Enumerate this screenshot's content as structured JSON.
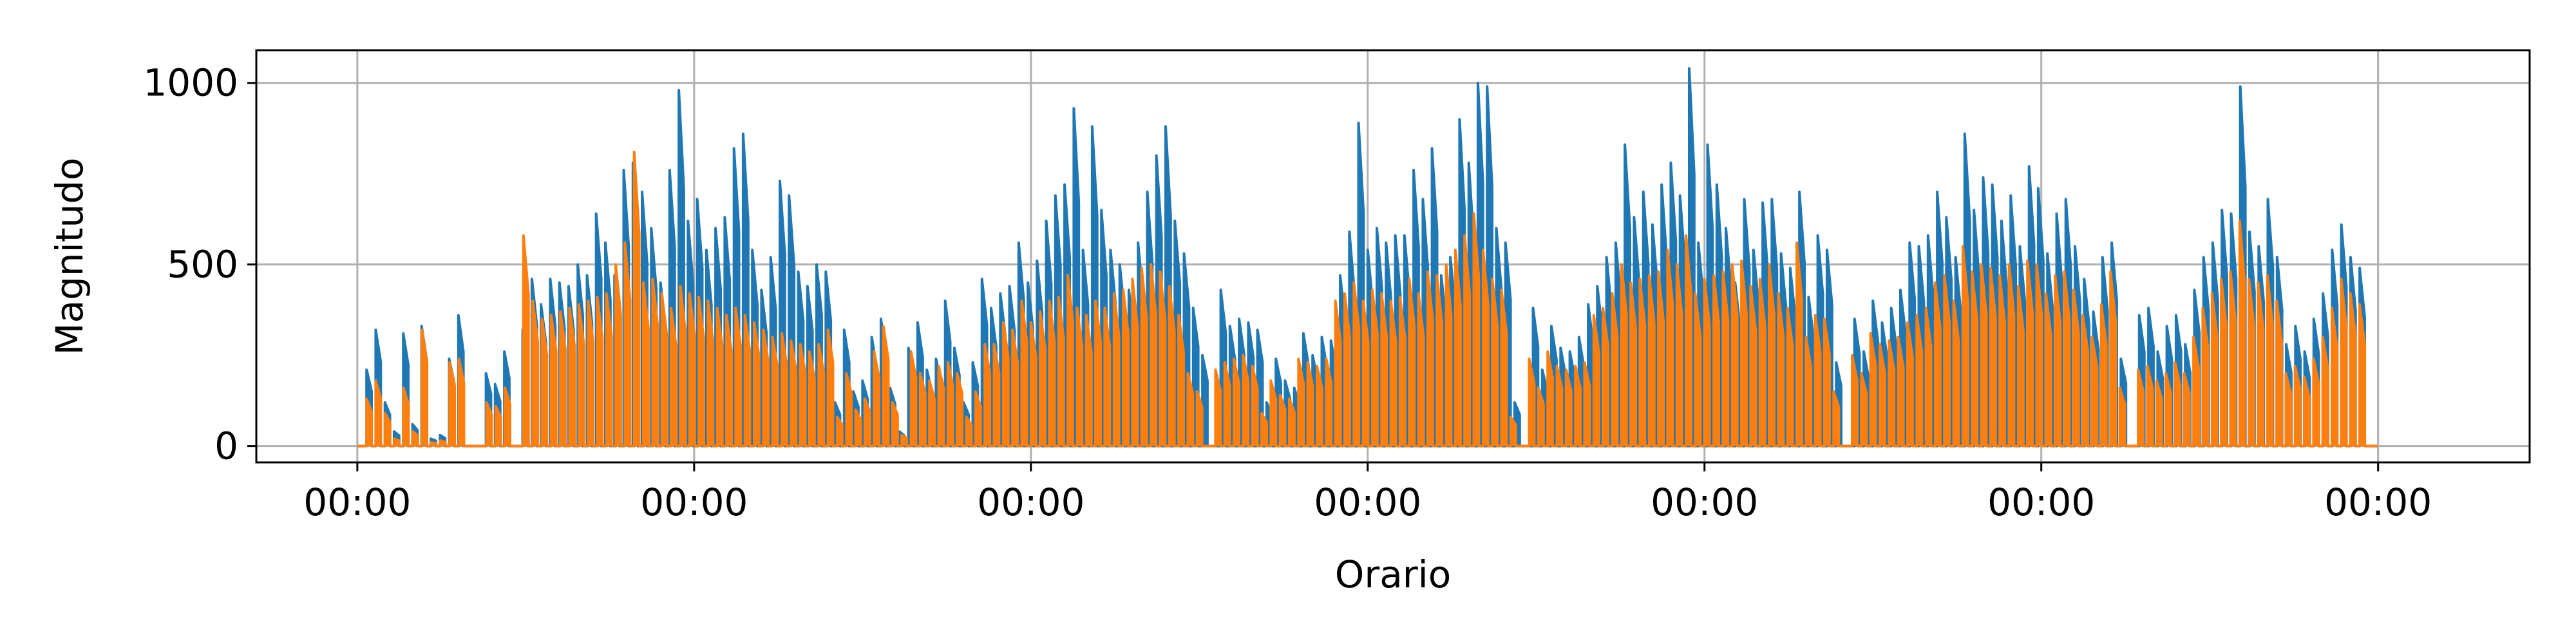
{
  "chart_data": {
    "type": "line",
    "title": "",
    "xlabel": "Orario",
    "ylabel": "Magnitudo",
    "ylim": [
      -45,
      1090
    ],
    "yticks": [
      0,
      500,
      1000
    ],
    "xlim": [
      -0.3,
      6.45
    ],
    "xtick_labels": [
      "00:00",
      "00:00",
      "00:00",
      "00:00",
      "00:00",
      "00:00",
      "00:00"
    ],
    "grid": true,
    "legend": "none",
    "colors": [
      "#1f77b4",
      "#ff7f0e"
    ],
    "series": [
      {
        "values": [
          0,
          210,
          320,
          120,
          40,
          310,
          60,
          330,
          20,
          30,
          240,
          360,
          0,
          0,
          200,
          170,
          260,
          0,
          320,
          460,
          390,
          460,
          450,
          440,
          500,
          470,
          640,
          560,
          470,
          760,
          780,
          700,
          600,
          450,
          760,
          980,
          620,
          680,
          540,
          600,
          630,
          820,
          860,
          540,
          430,
          520,
          730,
          690,
          480,
          440,
          500,
          480,
          120,
          320,
          150,
          180,
          300,
          350,
          160,
          40,
          270,
          340,
          210,
          240,
          400,
          270,
          120,
          230,
          460,
          380,
          420,
          440,
          560,
          450,
          510,
          620,
          690,
          720,
          930,
          540,
          880,
          650,
          540,
          500,
          430,
          560,
          700,
          800,
          880,
          620,
          530,
          380,
          250,
          0,
          430,
          330,
          350,
          340,
          320,
          120,
          240,
          180,
          160,
          310,
          250,
          300,
          290,
          470,
          590,
          890,
          540,
          600,
          560,
          580,
          580,
          760,
          680,
          820,
          470,
          520,
          900,
          780,
          1000,
          990,
          600,
          560,
          120,
          0,
          380,
          210,
          330,
          270,
          260,
          300,
          390,
          440,
          520,
          560,
          830,
          630,
          700,
          610,
          720,
          780,
          690,
          1040,
          560,
          830,
          720,
          600,
          450,
          680,
          540,
          670,
          680,
          530,
          490,
          700,
          410,
          580,
          540,
          230,
          0,
          350,
          260,
          400,
          340,
          380,
          430,
          560,
          550,
          580,
          700,
          630,
          520,
          860,
          650,
          740,
          720,
          620,
          690,
          550,
          770,
          710,
          530,
          640,
          680,
          550,
          460,
          370,
          520,
          560,
          240,
          0,
          360,
          380,
          260,
          330,
          360,
          280,
          430,
          520,
          560,
          650,
          640,
          990,
          590,
          550,
          680,
          520,
          280,
          330,
          260,
          350,
          420,
          540,
          610,
          520,
          490,
          0
        ]
      },
      {
        "values": [
          0,
          130,
          180,
          90,
          20,
          160,
          40,
          320,
          10,
          15,
          230,
          240,
          0,
          0,
          120,
          110,
          160,
          0,
          580,
          400,
          350,
          360,
          370,
          380,
          390,
          400,
          410,
          420,
          500,
          560,
          810,
          450,
          460,
          420,
          380,
          440,
          420,
          410,
          400,
          380,
          360,
          380,
          360,
          340,
          320,
          300,
          310,
          290,
          280,
          260,
          280,
          320,
          80,
          200,
          100,
          130,
          260,
          330,
          120,
          30,
          260,
          200,
          180,
          220,
          230,
          200,
          80,
          150,
          280,
          280,
          340,
          320,
          400,
          340,
          370,
          400,
          410,
          470,
          380,
          360,
          400,
          380,
          420,
          430,
          460,
          490,
          500,
          480,
          440,
          360,
          200,
          150,
          0,
          210,
          230,
          240,
          250,
          220,
          90,
          180,
          140,
          130,
          240,
          230,
          220,
          240,
          400,
          420,
          450,
          400,
          430,
          420,
          400,
          410,
          460,
          420,
          480,
          470,
          500,
          540,
          580,
          640,
          540,
          460,
          430,
          80,
          0,
          240,
          160,
          260,
          220,
          210,
          220,
          230,
          360,
          380,
          420,
          500,
          450,
          460,
          470,
          480,
          540,
          500,
          580,
          420,
          460,
          470,
          480,
          500,
          510,
          440,
          460,
          500,
          420,
          380,
          560,
          300,
          360,
          350,
          150,
          0,
          250,
          200,
          310,
          280,
          290,
          300,
          340,
          360,
          380,
          450,
          470,
          400,
          550,
          480,
          500,
          490,
          470,
          500,
          440,
          510,
          500,
          420,
          470,
          480,
          430,
          360,
          300,
          390,
          480,
          160,
          0,
          210,
          220,
          180,
          200,
          230,
          200,
          300,
          380,
          420,
          460,
          480,
          620,
          460,
          450,
          470,
          400,
          200,
          220,
          190,
          240,
          300,
          380,
          460,
          420,
          390,
          0
        ]
      }
    ]
  }
}
